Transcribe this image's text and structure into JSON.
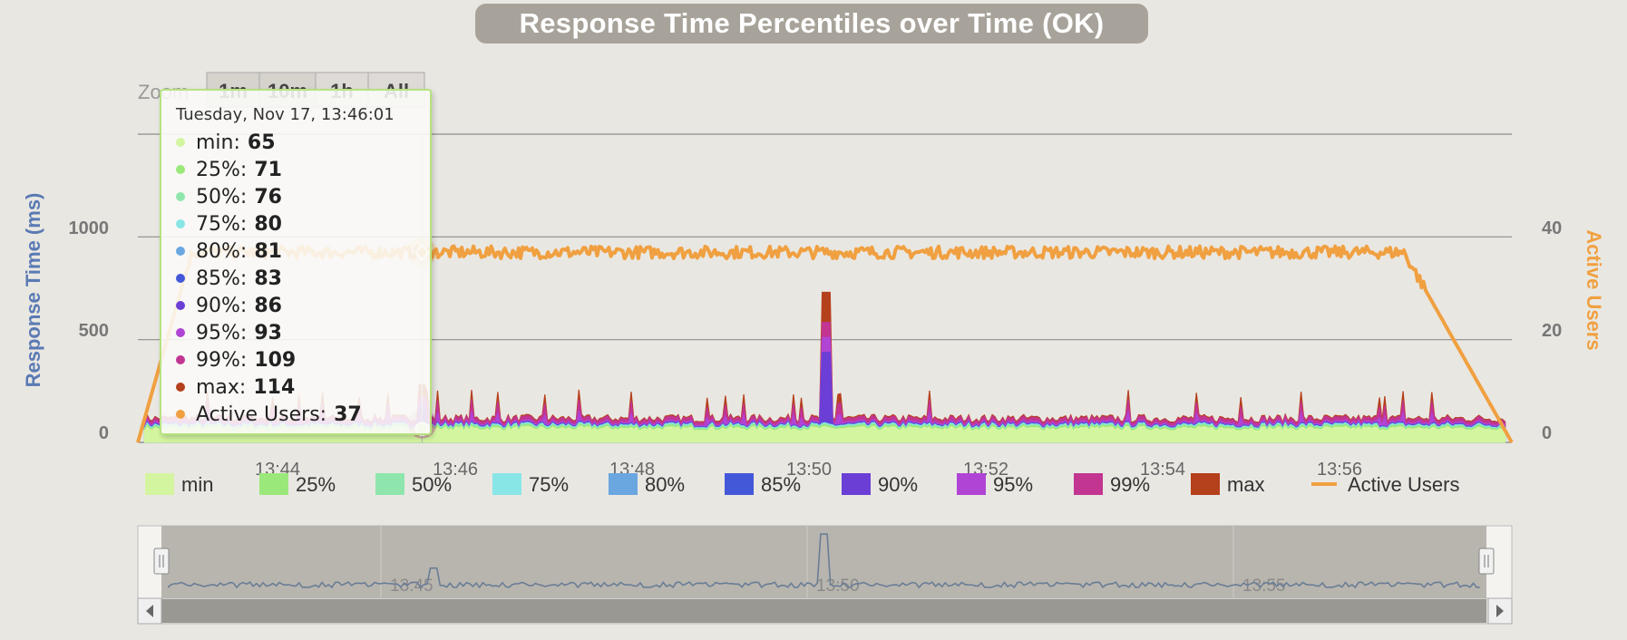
{
  "title": "Response Time Percentiles over Time (OK)",
  "zoom": {
    "label": "Zoom",
    "buttons": [
      "1m",
      "10m",
      "1h",
      "All"
    ]
  },
  "tooltip": {
    "date": "Tuesday, Nov 17, 13:46:01",
    "rows": [
      {
        "label": "min:",
        "value": "65",
        "color": "#d4f5a0"
      },
      {
        "label": "25%:",
        "value": "71",
        "color": "#9be87a"
      },
      {
        "label": "50%:",
        "value": "76",
        "color": "#8fe6ad"
      },
      {
        "label": "75%:",
        "value": "80",
        "color": "#88e6e6"
      },
      {
        "label": "80%:",
        "value": "81",
        "color": "#6aa6e0"
      },
      {
        "label": "85%:",
        "value": "83",
        "color": "#4358d8"
      },
      {
        "label": "90%:",
        "value": "86",
        "color": "#6b3fd6"
      },
      {
        "label": "95%:",
        "value": "93",
        "color": "#b044d4"
      },
      {
        "label": "99%:",
        "value": "109",
        "color": "#c23591"
      },
      {
        "label": "max:",
        "value": "114",
        "color": "#b5401c"
      },
      {
        "label": "Active Users:",
        "value": "37",
        "color": "#f0a040"
      }
    ]
  },
  "chart_data": {
    "type": "area",
    "title": "Response Time Percentiles over Time (OK)",
    "x_range": [
      "13:42:30",
      "13:59:30"
    ],
    "x_tick_labels": [
      "13:44",
      "13:46",
      "13:48",
      "13:50",
      "13:52",
      "13:54",
      "13:56"
    ],
    "y_left": {
      "label": "Response Time (ms)",
      "range": [
        0,
        1500
      ],
      "ticks": [
        "0",
        "500",
        "1000"
      ]
    },
    "y_right": {
      "label": "Active Users",
      "range": [
        0,
        60
      ],
      "ticks": [
        "0",
        "20",
        "40"
      ]
    },
    "grid": true,
    "legend_position": "bottom",
    "series": [
      {
        "name": "min",
        "color": "#d4f5a0",
        "typical_ms": 65
      },
      {
        "name": "25%",
        "color": "#9be87a",
        "typical_ms": 71
      },
      {
        "name": "50%",
        "color": "#8fe6ad",
        "typical_ms": 76
      },
      {
        "name": "75%",
        "color": "#88e6e6",
        "typical_ms": 80
      },
      {
        "name": "80%",
        "color": "#6aa6e0",
        "typical_ms": 81
      },
      {
        "name": "85%",
        "color": "#4358d8",
        "typical_ms": 83
      },
      {
        "name": "90%",
        "color": "#6b3fd6",
        "typical_ms": 86
      },
      {
        "name": "95%",
        "color": "#b044d4",
        "typical_ms": 93
      },
      {
        "name": "99%",
        "color": "#c23591",
        "typical_ms": 109
      },
      {
        "name": "max",
        "color": "#b5401c",
        "typical_ms": 114
      },
      {
        "name": "Active Users",
        "color": "#f0a040",
        "typical_users": 37
      }
    ],
    "max_spikes": [
      {
        "time": "13:46:00",
        "ms": 280
      },
      {
        "time": "13:51:01",
        "ms": 730
      }
    ],
    "active_users_profile": [
      {
        "time": "13:42:30",
        "users": 0
      },
      {
        "time": "13:43:10",
        "users": 37
      },
      {
        "time": "13:58:10",
        "users": 37
      },
      {
        "time": "13:59:30",
        "users": 0
      }
    ]
  },
  "navigator": {
    "labels": [
      "13:45",
      "13:50",
      "13:55"
    ]
  }
}
